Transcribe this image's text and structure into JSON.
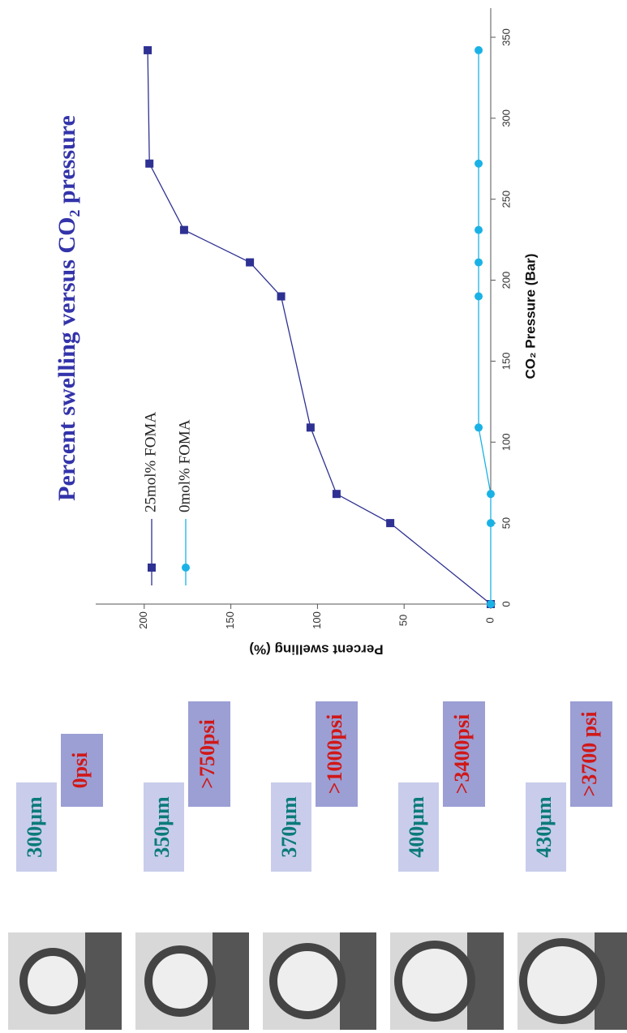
{
  "chart_data": {
    "type": "line",
    "title": "Percent swelling versus CO₂ pressure",
    "x_label": "CO₂ Pressure (Bar)",
    "y_label": "Percent swelling (%)",
    "x": [
      0,
      50,
      68,
      109,
      190,
      211,
      231,
      272,
      342
    ],
    "series": [
      {
        "name": "25mol% FOMA",
        "color": "#2e3192",
        "marker": "square",
        "values": [
          0,
          58,
          89,
          104,
          121,
          139,
          177,
          197,
          198
        ]
      },
      {
        "name": "0mol% FOMA",
        "color": "#1ab2e6",
        "marker": "circle",
        "values": [
          0,
          0,
          0,
          7,
          7,
          7,
          7,
          7,
          7
        ]
      }
    ],
    "xlim": [
      0,
      368
    ],
    "xticks": [
      0,
      50,
      100,
      150,
      200,
      250,
      300,
      350
    ],
    "ylim": [
      0,
      228
    ],
    "yticks": [
      0,
      50,
      100,
      150,
      200
    ],
    "annotations": [
      {
        "size": "300μm",
        "pressure": "0psi"
      },
      {
        "size": "350μm",
        "pressure": ">750psi"
      },
      {
        "size": "370μm",
        "pressure": ">1000psi"
      },
      {
        "size": "400μm",
        "pressure": ">3400psi"
      },
      {
        "size": "430μm",
        "pressure": ">3700 psi"
      }
    ]
  }
}
